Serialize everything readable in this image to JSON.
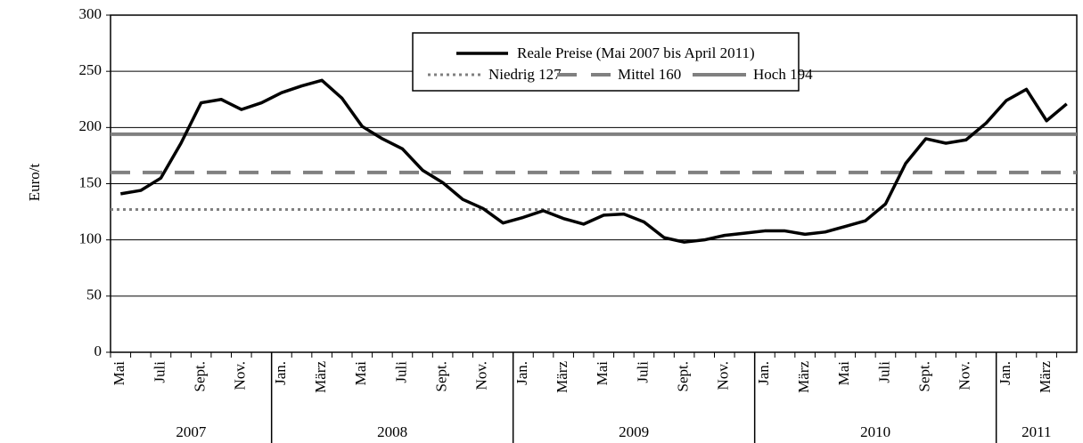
{
  "chart_data": {
    "type": "line",
    "ylabel": "Euro/t",
    "categories": [
      "Mai",
      null,
      "Juli",
      null,
      "Sept.",
      null,
      "Nov.",
      null,
      "Jan.",
      null,
      "März",
      null,
      "Mai",
      null,
      "Juli",
      null,
      "Sept.",
      null,
      "Nov.",
      null,
      "Jan.",
      null,
      "März",
      null,
      "Mai",
      null,
      "Juli",
      null,
      "Sept.",
      null,
      "Nov.",
      null,
      "Jan.",
      null,
      "März",
      null,
      "Mai",
      null,
      "Juli",
      null,
      "Sept.",
      null,
      "Nov.",
      null,
      "Jan.",
      null,
      "März",
      null
    ],
    "years": [
      "2007",
      "2008",
      "2009",
      "2010",
      "2011"
    ],
    "series": [
      {
        "name": "Reale Preise (Mai 2007 bis April 2011)",
        "color": "#000000",
        "values": [
          141,
          144,
          155,
          186,
          222,
          225,
          216,
          222,
          231,
          237,
          242,
          226,
          201,
          190,
          181,
          162,
          151,
          136,
          128,
          115,
          120,
          126,
          119,
          114,
          122,
          123,
          116,
          102,
          98,
          100,
          104,
          106,
          108,
          108,
          105,
          107,
          112,
          117,
          132,
          168,
          190,
          186,
          189,
          204,
          224,
          234,
          206,
          221
        ]
      }
    ],
    "reference_lines": [
      {
        "name": "Niedrig 127",
        "value": 127,
        "color": "#808080",
        "style": "dotted"
      },
      {
        "name": "Mittel 160",
        "value": 160,
        "color": "#808080",
        "style": "dashed"
      },
      {
        "name": "Hoch 194",
        "value": 194,
        "color": "#808080",
        "style": "solid"
      }
    ],
    "ylim": [
      0,
      300
    ],
    "yticks": [
      0,
      50,
      100,
      150,
      200,
      250,
      300
    ],
    "grid": true
  }
}
